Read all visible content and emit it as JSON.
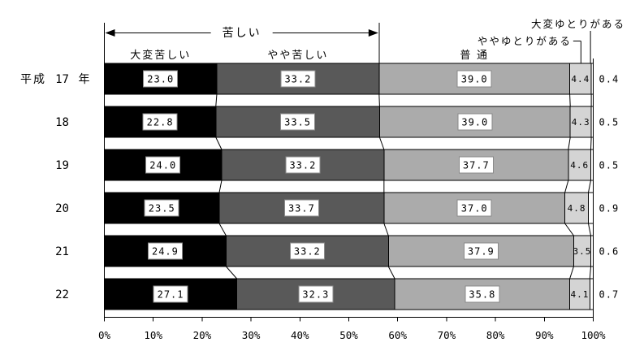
{
  "chart_data": {
    "type": "bar",
    "orientation": "horizontal-stacked",
    "unit": "%",
    "title": "",
    "categories": [
      {
        "era": "平成",
        "year": "17",
        "era_suffix": "年"
      },
      {
        "year": "18"
      },
      {
        "year": "19"
      },
      {
        "year": "20"
      },
      {
        "year": "21"
      },
      {
        "year": "22"
      }
    ],
    "series": [
      {
        "name": "大変苦しい",
        "header_label": "大変苦しい",
        "color": "#000000",
        "value_label_style": "white-box",
        "values": [
          23.0,
          22.8,
          24.0,
          23.5,
          24.9,
          27.1
        ],
        "labels": [
          "23.0",
          "22.8",
          "24.0",
          "23.5",
          "24.9",
          "27.1"
        ]
      },
      {
        "name": "やや苦しい",
        "header_label": "やや苦しい",
        "color": "#595959",
        "value_label_style": "white-box",
        "values": [
          33.2,
          33.5,
          33.2,
          33.7,
          33.2,
          32.3
        ],
        "labels": [
          "33.2",
          "33.5",
          "33.2",
          "33.7",
          "33.2",
          "32.3"
        ]
      },
      {
        "name": "普通",
        "header_label": "普 通",
        "color": "#ababab",
        "value_label_style": "white-box",
        "values": [
          39.0,
          39.0,
          37.7,
          37.0,
          37.9,
          35.8
        ],
        "labels": [
          "39.0",
          "39.0",
          "37.7",
          "37.0",
          "37.9",
          "35.8"
        ]
      },
      {
        "name": "ややゆとりがある",
        "header_label": "ややゆとりがある",
        "color": "#d4d4d4",
        "value_label_style": "plain",
        "values": [
          4.4,
          4.3,
          4.6,
          4.8,
          3.5,
          4.1
        ],
        "labels": [
          "4.4",
          "4.3",
          "4.6",
          "4.8",
          "3.5",
          "4.1"
        ]
      },
      {
        "name": "大変ゆとりがある",
        "header_label": "大変ゆとりがある",
        "color": "#ffffff",
        "value_label_style": "outside",
        "values": [
          0.4,
          0.5,
          0.5,
          0.9,
          0.6,
          0.7
        ],
        "labels": [
          "0.4",
          "0.5",
          "0.5",
          "0.9",
          "0.6",
          "0.7"
        ]
      }
    ],
    "group_annotation": {
      "label": "苦しい",
      "covers_series": [
        "大変苦しい",
        "やや苦しい"
      ]
    },
    "x_axis": {
      "min": 0,
      "max": 100,
      "tick_step": 10,
      "tick_labels": [
        "0%",
        "10%",
        "20%",
        "30%",
        "40%",
        "50%",
        "60%",
        "70%",
        "80%",
        "90%",
        "100%"
      ]
    },
    "legend": "none",
    "grid": "none",
    "colors": {
      "bar_outline": "#000000",
      "connector_line": "#000000",
      "value_box_fill": "#ffffff",
      "value_box_border": "#8a8a8a",
      "text": "#000000"
    }
  }
}
